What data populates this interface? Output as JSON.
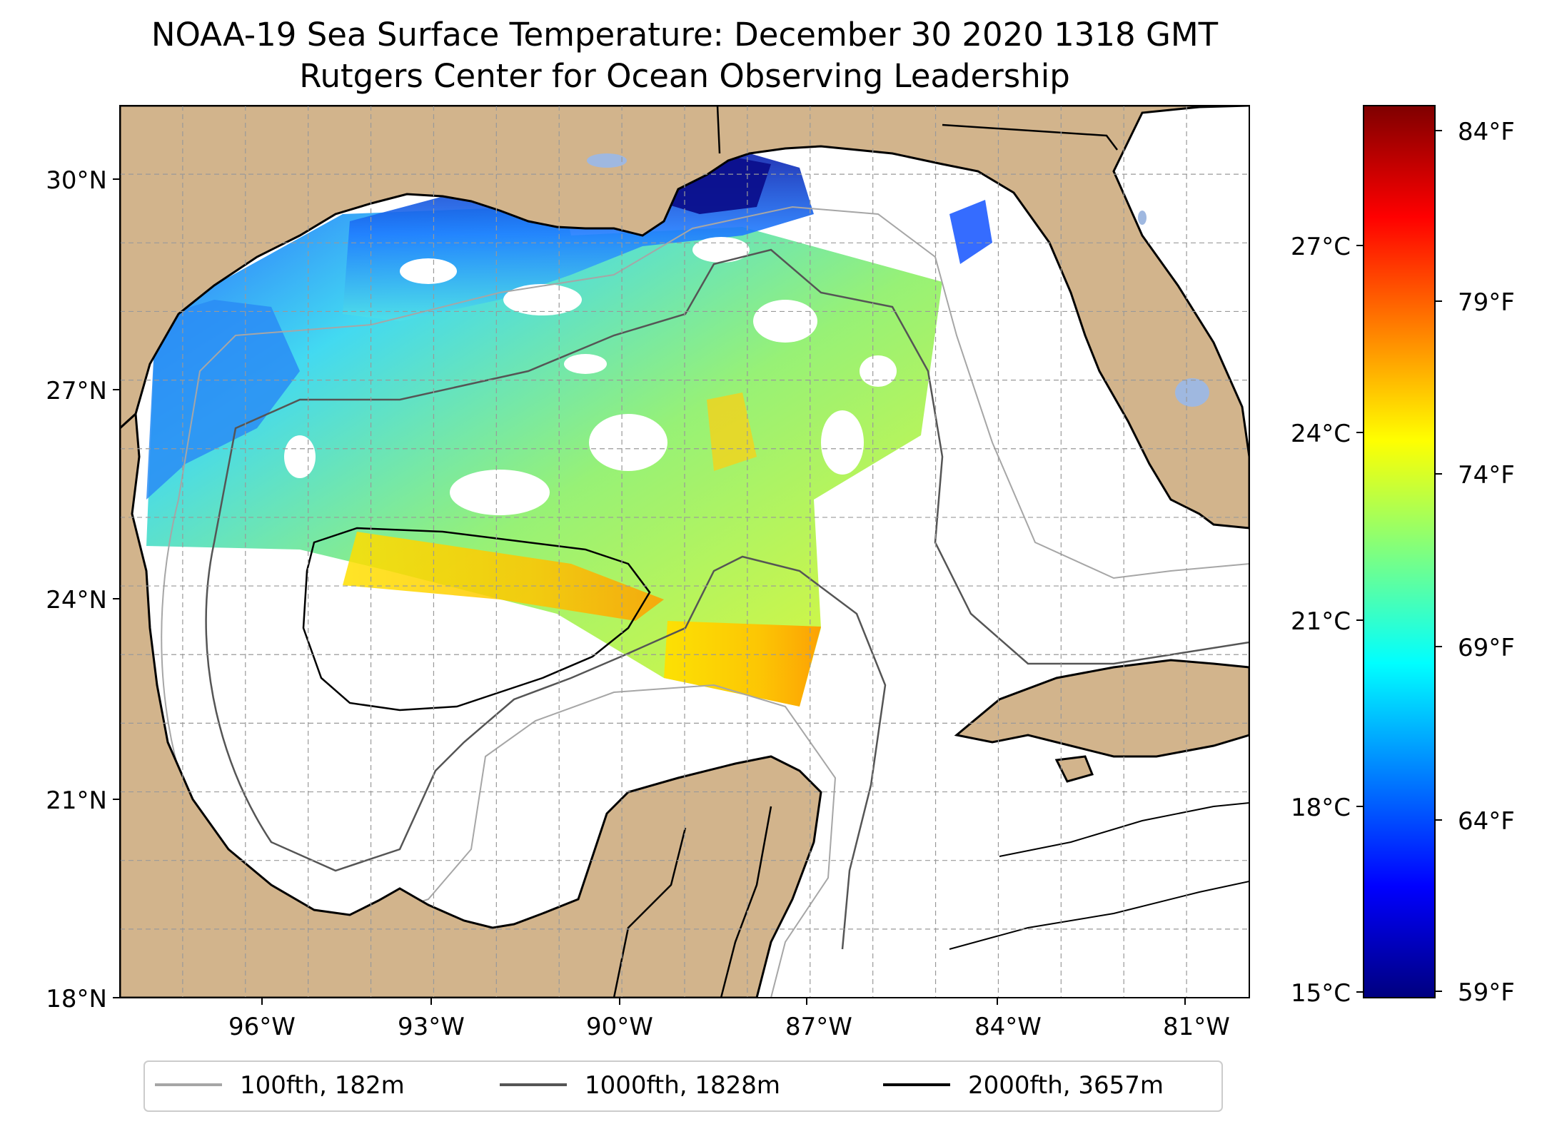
{
  "title_line1": "NOAA-19 Sea Surface Temperature: December 30 2020 1318 GMT",
  "title_line2": "Rutgers Center for Ocean Observing Leadership",
  "map": {
    "lon_range": [
      -98.0,
      -80.0
    ],
    "lat_range": [
      18.0,
      31.0
    ],
    "grid": "dashed",
    "lat_ticks": [
      "30°N",
      "27°N",
      "24°N",
      "21°N",
      "18°N"
    ],
    "lon_ticks": [
      "96°W",
      "93°W",
      "90°W",
      "87°W",
      "84°W",
      "81°W"
    ],
    "land_color": "#d2b48c",
    "inland_water_color": "#9fb8e0"
  },
  "colorbar": {
    "colormap": "jet",
    "min_c": 15,
    "max_c": 29,
    "celsius_ticks": [
      "27°C",
      "24°C",
      "21°C",
      "18°C",
      "15°C"
    ],
    "fahrenheit_ticks": [
      "84°F",
      "79°F",
      "74°F",
      "69°F",
      "64°F",
      "59°F"
    ]
  },
  "legend": {
    "placement": "bottom-center",
    "items": [
      {
        "label": "100fth, 182m",
        "color": "#a6a6a6"
      },
      {
        "label": "1000fth, 1828m",
        "color": "#555555"
      },
      {
        "label": "2000fth, 3657m",
        "color": "#000000"
      }
    ]
  }
}
